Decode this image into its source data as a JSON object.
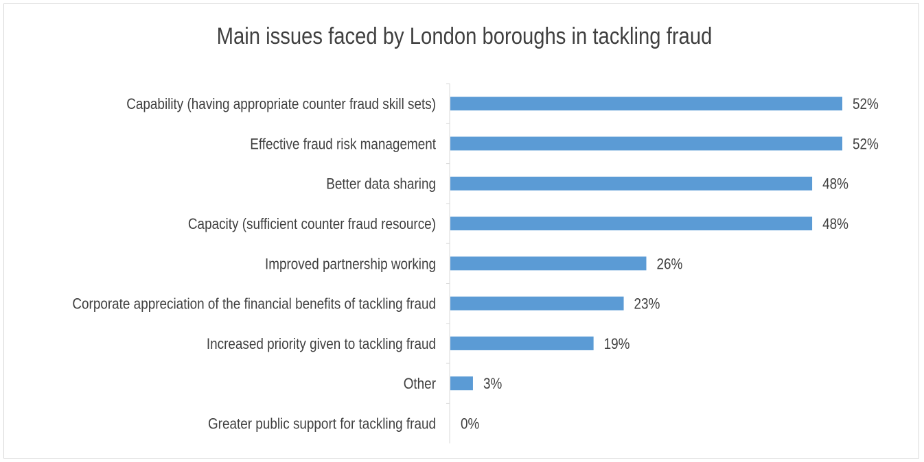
{
  "chart_data": {
    "type": "bar",
    "orientation": "horizontal",
    "title": "Main issues faced by London boroughs in tackling fraud",
    "categories": [
      "Capability (having appropriate counter fraud skill sets)",
      "Effective fraud risk management",
      "Better data sharing",
      "Capacity (sufficient counter fraud resource)",
      "Improved partnership working",
      "Corporate appreciation of the financial benefits of tackling fraud",
      "Increased priority given to tackling fraud",
      "Other",
      "Greater public support for tackling fraud"
    ],
    "values": [
      52,
      52,
      48,
      48,
      26,
      23,
      19,
      3,
      0
    ],
    "labels": [
      "52%",
      "52%",
      "48%",
      "48%",
      "26%",
      "23%",
      "19%",
      "3%",
      "0%"
    ],
    "unit": "%",
    "xlim": [
      0,
      60
    ],
    "bar_color": "#5b9bd5",
    "grid": false,
    "legend": "none"
  }
}
